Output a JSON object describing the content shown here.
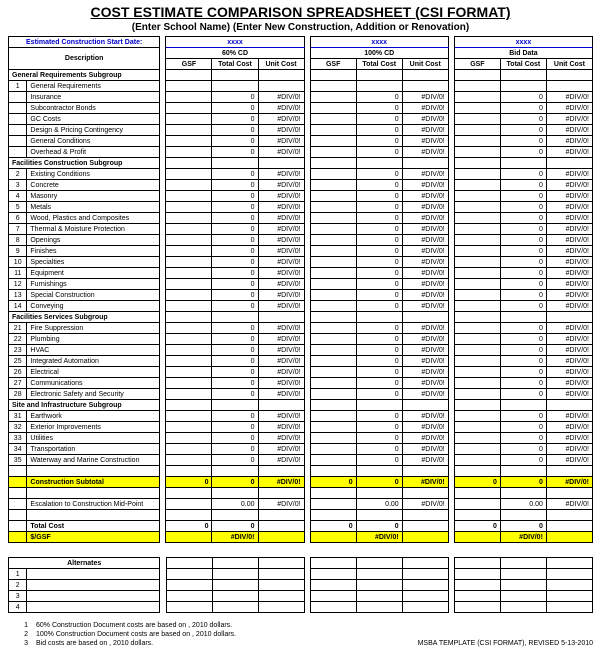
{
  "title": "COST ESTIMATE COMPARISON SPREADSHEET (CSI FORMAT)",
  "subtitle": "(Enter School Name) (Enter New Construction, Addition or Renovation)",
  "startDateLabel": "Estimated Construction Start Date:",
  "xxxx": "xxxx",
  "descriptionLabel": "Description",
  "colGroups": [
    {
      "label": "60% CD",
      "cols": [
        "GSF",
        "Total Cost",
        "Unit Cost"
      ]
    },
    {
      "label": "100% CD",
      "cols": [
        "GSF",
        "Total Cost",
        "Unit Cost"
      ]
    },
    {
      "label": "Bid Data",
      "cols": [
        "GSF",
        "Total Cost",
        "Unit Cost"
      ]
    }
  ],
  "div0": "#DIV/0!",
  "zero": "0",
  "zeroDec": "0.00",
  "sections": [
    {
      "header": "General Requirements Subgroup",
      "rows": [
        {
          "num": "1",
          "desc": "General Requirements",
          "hasUnit": false
        },
        {
          "num": "",
          "desc": "Insurance",
          "hasUnit": true
        },
        {
          "num": "",
          "desc": "Subcontractor Bonds",
          "hasUnit": true
        },
        {
          "num": "",
          "desc": "GC Costs",
          "hasUnit": true
        },
        {
          "num": "",
          "desc": "Design & Pricing Contingency",
          "hasUnit": true
        },
        {
          "num": "",
          "desc": "General Conditions",
          "hasUnit": true
        },
        {
          "num": "",
          "desc": "Overhead & Profit",
          "hasUnit": true
        }
      ]
    },
    {
      "header": "Facilities Construction Subgroup",
      "rows": [
        {
          "num": "2",
          "desc": "Existing Conditions",
          "hasUnit": true
        },
        {
          "num": "3",
          "desc": "Concrete",
          "hasUnit": true
        },
        {
          "num": "4",
          "desc": "Masonry",
          "hasUnit": true
        },
        {
          "num": "5",
          "desc": "Metals",
          "hasUnit": true
        },
        {
          "num": "6",
          "desc": "Wood, Plastics and Composites",
          "hasUnit": true
        },
        {
          "num": "7",
          "desc": "Thermal & Moisture Protection",
          "hasUnit": true
        },
        {
          "num": "8",
          "desc": "Openings",
          "hasUnit": true
        },
        {
          "num": "9",
          "desc": "Finishes",
          "hasUnit": true
        },
        {
          "num": "10",
          "desc": "Specialties",
          "hasUnit": true
        },
        {
          "num": "11",
          "desc": "Equipment",
          "hasUnit": true
        },
        {
          "num": "12",
          "desc": "Furnishings",
          "hasUnit": true
        },
        {
          "num": "13",
          "desc": "Special Construction",
          "hasUnit": true
        },
        {
          "num": "14",
          "desc": "Conveying",
          "hasUnit": true
        }
      ]
    },
    {
      "header": "Facilities Services Subgroup",
      "rows": [
        {
          "num": "21",
          "desc": "Fire Suppression",
          "hasUnit": true
        },
        {
          "num": "22",
          "desc": "Plumbing",
          "hasUnit": true
        },
        {
          "num": "23",
          "desc": "HVAC",
          "hasUnit": true
        },
        {
          "num": "25",
          "desc": "Integrated Automation",
          "hasUnit": true
        },
        {
          "num": "26",
          "desc": "Electrical",
          "hasUnit": true
        },
        {
          "num": "27",
          "desc": "Communications",
          "hasUnit": true
        },
        {
          "num": "28",
          "desc": "Electronic Safety and Security",
          "hasUnit": true
        }
      ]
    },
    {
      "header": "Site and Infrastructure Subgroup",
      "rows": [
        {
          "num": "31",
          "desc": "Earthwork",
          "hasUnit": true
        },
        {
          "num": "32",
          "desc": "Exterior Improvements",
          "hasUnit": true
        },
        {
          "num": "33",
          "desc": "Utilities",
          "hasUnit": true
        },
        {
          "num": "34",
          "desc": "Transportation",
          "hasUnit": true
        },
        {
          "num": "35",
          "desc": "Waterway and Marine Construction",
          "hasUnit": true
        }
      ]
    }
  ],
  "subtotalLabel": "Construction Subtotal",
  "escalationLabel": "Escalation to Construction Mid-Point",
  "totalCostLabel": "Total Cost",
  "perGsfLabel": "$/GSF",
  "alternatesLabel": "Alternates",
  "altRows": [
    "1",
    "2",
    "3",
    "4"
  ],
  "footnotes": [
    {
      "num": "1",
      "text": "60% Construction Document costs are based on , 2010 dollars."
    },
    {
      "num": "2",
      "text": "100% Construction Document costs are based on , 2010 dollars."
    },
    {
      "num": "3",
      "text": "Bid costs are based on , 2010 dollars."
    }
  ],
  "footerRight": "MSBA TEMPLATE (CSI FORMAT), REVISED  5-13-2010"
}
